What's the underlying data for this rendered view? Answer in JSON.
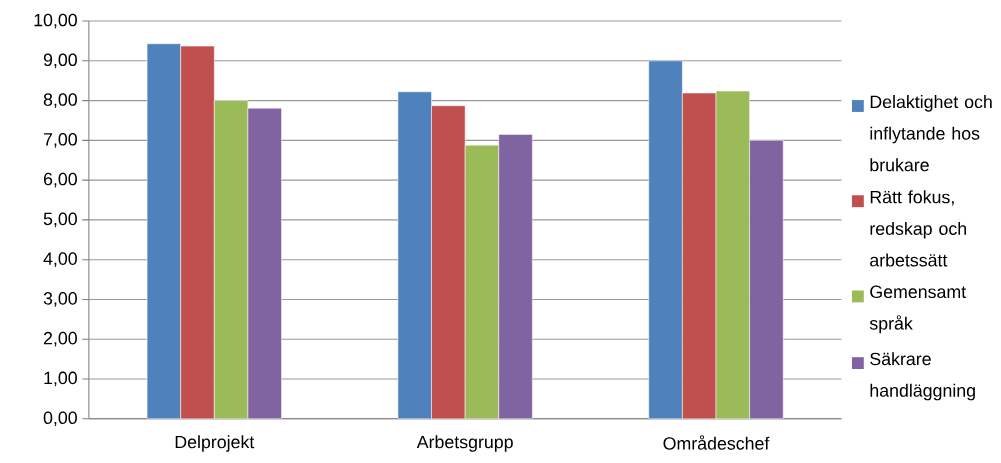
{
  "chart_data": {
    "type": "bar",
    "categories": [
      "Delprojekt",
      "Arbetsgrupp",
      "Områdeschef"
    ],
    "series": [
      {
        "name": "Delaktighet och inflytande hos brukare",
        "color": "#4f81bd",
        "values": [
          9.43,
          8.22,
          9.0
        ]
      },
      {
        "name": "Rätt fokus, redskap och arbetssätt",
        "color": "#c0504d",
        "values": [
          9.37,
          7.87,
          8.19
        ]
      },
      {
        "name": "Gemensamt språk",
        "color": "#9bbb59",
        "values": [
          8.0,
          6.88,
          8.24
        ]
      },
      {
        "name": "Säkrare handläggning",
        "color": "#8064a2",
        "values": [
          7.81,
          7.15,
          7.0
        ]
      }
    ],
    "ylim": [
      0,
      10
    ],
    "yticks": [
      {
        "value": 0,
        "label": "0,00"
      },
      {
        "value": 1,
        "label": "1,00"
      },
      {
        "value": 2,
        "label": "2,00"
      },
      {
        "value": 3,
        "label": "3,00"
      },
      {
        "value": 4,
        "label": "4,00"
      },
      {
        "value": 5,
        "label": "5,00"
      },
      {
        "value": 6,
        "label": "6,00"
      },
      {
        "value": 7,
        "label": "7,00"
      },
      {
        "value": 8,
        "label": "8,00"
      },
      {
        "value": 9,
        "label": "9,00"
      },
      {
        "value": 10,
        "label": "10,00"
      }
    ],
    "grid": "y",
    "legend": "right"
  }
}
